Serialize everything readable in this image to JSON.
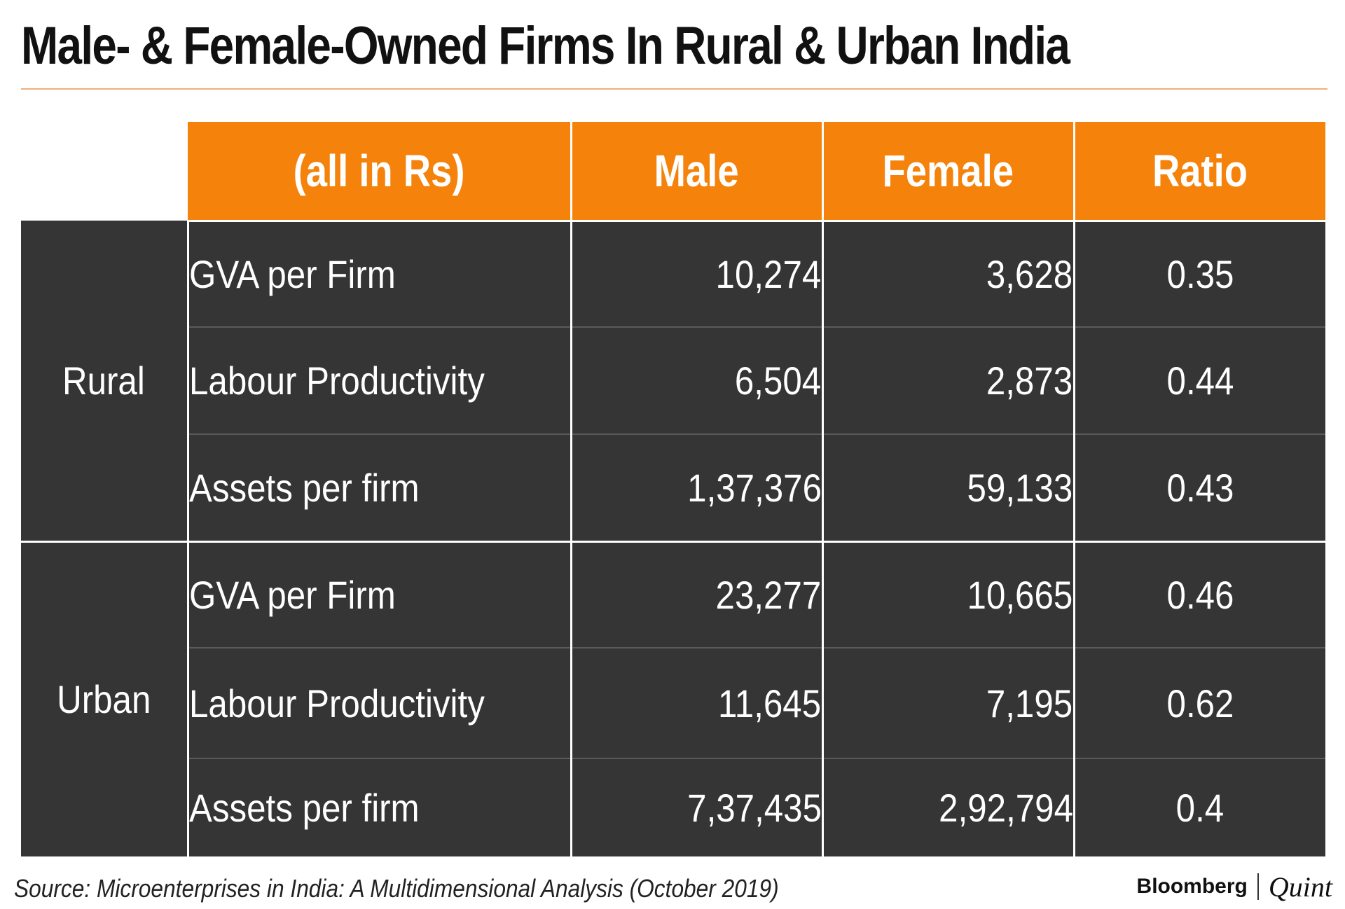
{
  "title": "Male- & Female-Owned Firms In Rural & Urban India",
  "source": "Source: Microenterprises in India: A Multidimensional Analysis (October 2019)",
  "logo": {
    "brand": "Bloomberg",
    "sub": "Quint"
  },
  "colors": {
    "header_bg": "#f5820a",
    "body_bg": "#353535",
    "title_rule": "#f0b07a"
  },
  "chart_data": {
    "type": "table",
    "title": "Male- & Female-Owned Firms In Rural & Urban India",
    "columns": [
      "(all in Rs)",
      "Male",
      "Female",
      "Ratio"
    ],
    "groups": [
      {
        "name": "Rural",
        "rows": [
          {
            "metric": "GVA per Firm",
            "male": "10,274",
            "female": "3,628",
            "ratio": "0.35"
          },
          {
            "metric": "Labour Productivity",
            "male": "6,504",
            "female": "2,873",
            "ratio": "0.44"
          },
          {
            "metric": "Assets per firm",
            "male": "1,37,376",
            "female": "59,133",
            "ratio": "0.43"
          }
        ]
      },
      {
        "name": "Urban",
        "rows": [
          {
            "metric": "GVA per Firm",
            "male": "23,277",
            "female": "10,665",
            "ratio": "0.46"
          },
          {
            "metric": "Labour Productivity",
            "male": "11,645",
            "female": "7,195",
            "ratio": "0.62"
          },
          {
            "metric": "Assets per firm",
            "male": "7,37,435",
            "female": "2,92,794",
            "ratio": "0.4"
          }
        ]
      }
    ]
  }
}
